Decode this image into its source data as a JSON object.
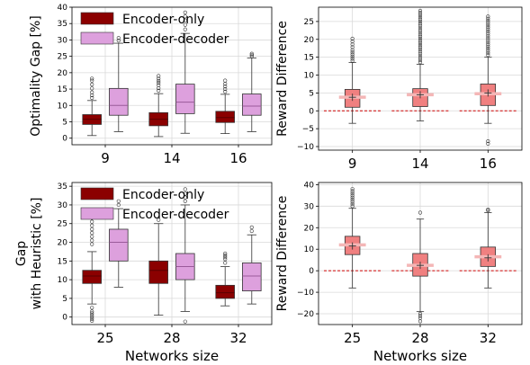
{
  "colors": {
    "encoder_only": "#8b0000",
    "encoder_decoder": "#dda0dd",
    "reward_box": "#f08080",
    "reward_median": "#f4b6b6",
    "zero_line": "#cc0000",
    "grid": "#d9d9d9"
  },
  "chart_data": [
    {
      "type": "box",
      "ylabel": "Optimality Gap [%]",
      "xlabel": "",
      "ylim": [
        -2,
        40
      ],
      "yticks": [
        0,
        5,
        10,
        15,
        20,
        25,
        30,
        35,
        40
      ],
      "categories": [
        "9",
        "14",
        "16"
      ],
      "grid": true,
      "legend": {
        "placement": "top-left",
        "entries": [
          "Encoder-only",
          "Encoder-decoder"
        ]
      },
      "series": [
        {
          "name": "Encoder-only",
          "boxes": [
            {
              "whislo": 0.8,
              "q1": 4.2,
              "med": 5.8,
              "q3": 7.2,
              "whishi": 11.5,
              "fliers": [
                12.3,
                13.1,
                14.0,
                15.2,
                16.4,
                17.6,
                18.2
              ]
            },
            {
              "whislo": 0.5,
              "q1": 3.8,
              "med": 5.8,
              "q3": 7.8,
              "whishi": 13.6,
              "fliers": [
                14.5,
                15.3,
                16.2,
                16.9,
                17.5,
                18.2,
                19.0
              ]
            },
            {
              "whislo": 1.4,
              "q1": 4.8,
              "med": 6.3,
              "q3": 8.2,
              "whishi": 13.4,
              "fliers": [
                14.2,
                15.0,
                15.8,
                16.6,
                17.6
              ]
            }
          ]
        },
        {
          "name": "Encoder-decoder",
          "boxes": [
            {
              "whislo": 2.0,
              "q1": 7.0,
              "med": 10.0,
              "q3": 15.2,
              "whishi": 29.0,
              "fliers": [
                29.8,
                30.6
              ]
            },
            {
              "whislo": 1.5,
              "q1": 7.5,
              "med": 11.0,
              "q3": 16.5,
              "whishi": 32.0,
              "fliers": [
                33.2,
                34.6,
                36.0,
                37.2,
                38.4
              ]
            },
            {
              "whislo": 2.0,
              "q1": 7.0,
              "med": 9.8,
              "q3": 13.5,
              "whishi": 24.5,
              "fliers": [
                25.0,
                25.4,
                25.8
              ]
            }
          ]
        }
      ]
    },
    {
      "type": "box",
      "ylabel": "Reward Difference",
      "xlabel": "",
      "ylim": [
        -11,
        29
      ],
      "yticks": [
        -10,
        -5,
        0,
        5,
        10,
        15,
        20,
        25
      ],
      "categories": [
        "9",
        "14",
        "16"
      ],
      "grid": true,
      "reference_line": 0,
      "series": [
        {
          "name": "",
          "means": [
            3.8,
            4.5,
            5.0
          ],
          "boxes": [
            {
              "whislo": -3.5,
              "q1": 1.0,
              "med": 3.8,
              "q3": 6.0,
              "whishi": 13.5,
              "fliers": [
                14.0,
                14.6,
                15.2,
                15.8,
                16.4,
                17.0,
                17.8,
                18.6,
                19.4,
                20.2
              ]
            },
            {
              "whislo": -2.8,
              "q1": 1.2,
              "med": 4.5,
              "q3": 6.2,
              "whishi": 13.0,
              "fliers": [
                13.6,
                14.2,
                14.8,
                15.4,
                16.0,
                16.6,
                17.2,
                17.8,
                18.4,
                19.0,
                19.6,
                20.2,
                20.8,
                21.4,
                22.0,
                22.6,
                23.2,
                23.8,
                24.4,
                25.0,
                25.6,
                26.2,
                26.8,
                27.4,
                28.0
              ]
            },
            {
              "whislo": -3.5,
              "q1": 1.5,
              "med": 4.8,
              "q3": 7.5,
              "whishi": 15.0,
              "fliers": [
                15.6,
                16.2,
                16.8,
                17.4,
                18.0,
                18.6,
                19.2,
                19.8,
                20.4,
                21.0,
                21.6,
                22.2,
                22.8,
                23.4,
                24.0,
                24.6,
                25.2,
                25.8,
                26.4,
                -8.5,
                -9.2
              ]
            }
          ]
        }
      ]
    },
    {
      "type": "box",
      "ylabel": "Gap\nwith Heuristic [%]",
      "xlabel": "Networks size",
      "ylim": [
        -2,
        36
      ],
      "yticks": [
        0,
        5,
        10,
        15,
        20,
        25,
        30,
        35
      ],
      "categories": [
        "25",
        "28",
        "32"
      ],
      "grid": true,
      "legend": {
        "placement": "top-left",
        "entries": [
          "Encoder-only",
          "Encoder-decoder"
        ]
      },
      "series": [
        {
          "name": "Encoder-only",
          "boxes": [
            {
              "whislo": 3.5,
              "q1": 9.0,
              "med": 11.0,
              "q3": 12.5,
              "whishi": 17.5,
              "fliers": [
                19.5,
                20.5,
                21.5,
                22.5,
                23.5,
                24.5,
                25.5,
                26.5,
                2.5,
                1.5,
                1.0,
                0.5,
                0.0,
                -0.5,
                -1.0
              ]
            },
            {
              "whislo": 0.5,
              "q1": 9.0,
              "med": 12.5,
              "q3": 15.0,
              "whishi": 25.0,
              "fliers": [
                26.0
              ]
            },
            {
              "whislo": 3.0,
              "q1": 5.0,
              "med": 6.5,
              "q3": 8.5,
              "whishi": 13.5,
              "fliers": [
                14.5,
                15.5,
                16.0,
                16.5,
                17.0
              ]
            }
          ]
        },
        {
          "name": "Encoder-decoder",
          "boxes": [
            {
              "whislo": 8.0,
              "q1": 15.0,
              "med": 20.0,
              "q3": 23.5,
              "whishi": 29.0,
              "fliers": [
                30.0,
                31.0
              ]
            },
            {
              "whislo": 1.5,
              "q1": 10.0,
              "med": 13.5,
              "q3": 17.0,
              "whishi": 30.0,
              "fliers": [
                31.0,
                32.0,
                33.0,
                34.2,
                -1.2
              ]
            },
            {
              "whislo": 3.5,
              "q1": 7.0,
              "med": 11.0,
              "q3": 14.5,
              "whishi": 22.0,
              "fliers": [
                23.0,
                24.0
              ]
            }
          ]
        }
      ]
    },
    {
      "type": "box",
      "ylabel": "Reward Difference",
      "xlabel": "Networks size",
      "ylim": [
        -25,
        41
      ],
      "yticks": [
        -20,
        -10,
        0,
        10,
        20,
        30,
        40
      ],
      "categories": [
        "25",
        "28",
        "32"
      ],
      "grid": true,
      "reference_line": 0,
      "series": [
        {
          "name": "",
          "means": [
            11.5,
            2.5,
            6.0
          ],
          "boxes": [
            {
              "whislo": -8.0,
              "q1": 7.5,
              "med": 12.0,
              "q3": 16.0,
              "whishi": 29.0,
              "fliers": [
                30.0,
                31.0,
                32.0,
                33.0,
                34.0,
                35.0,
                36.0,
                37.0,
                38.0
              ]
            },
            {
              "whislo": -19.0,
              "q1": -2.5,
              "med": 2.5,
              "q3": 8.0,
              "whishi": 24.0,
              "fliers": [
                27.0,
                -20.0,
                -21.0,
                -22.0,
                -23.5
              ]
            },
            {
              "whislo": -8.0,
              "q1": 2.0,
              "med": 6.5,
              "q3": 11.0,
              "whishi": 27.0,
              "fliers": [
                28.0,
                28.5
              ]
            }
          ]
        }
      ]
    }
  ]
}
